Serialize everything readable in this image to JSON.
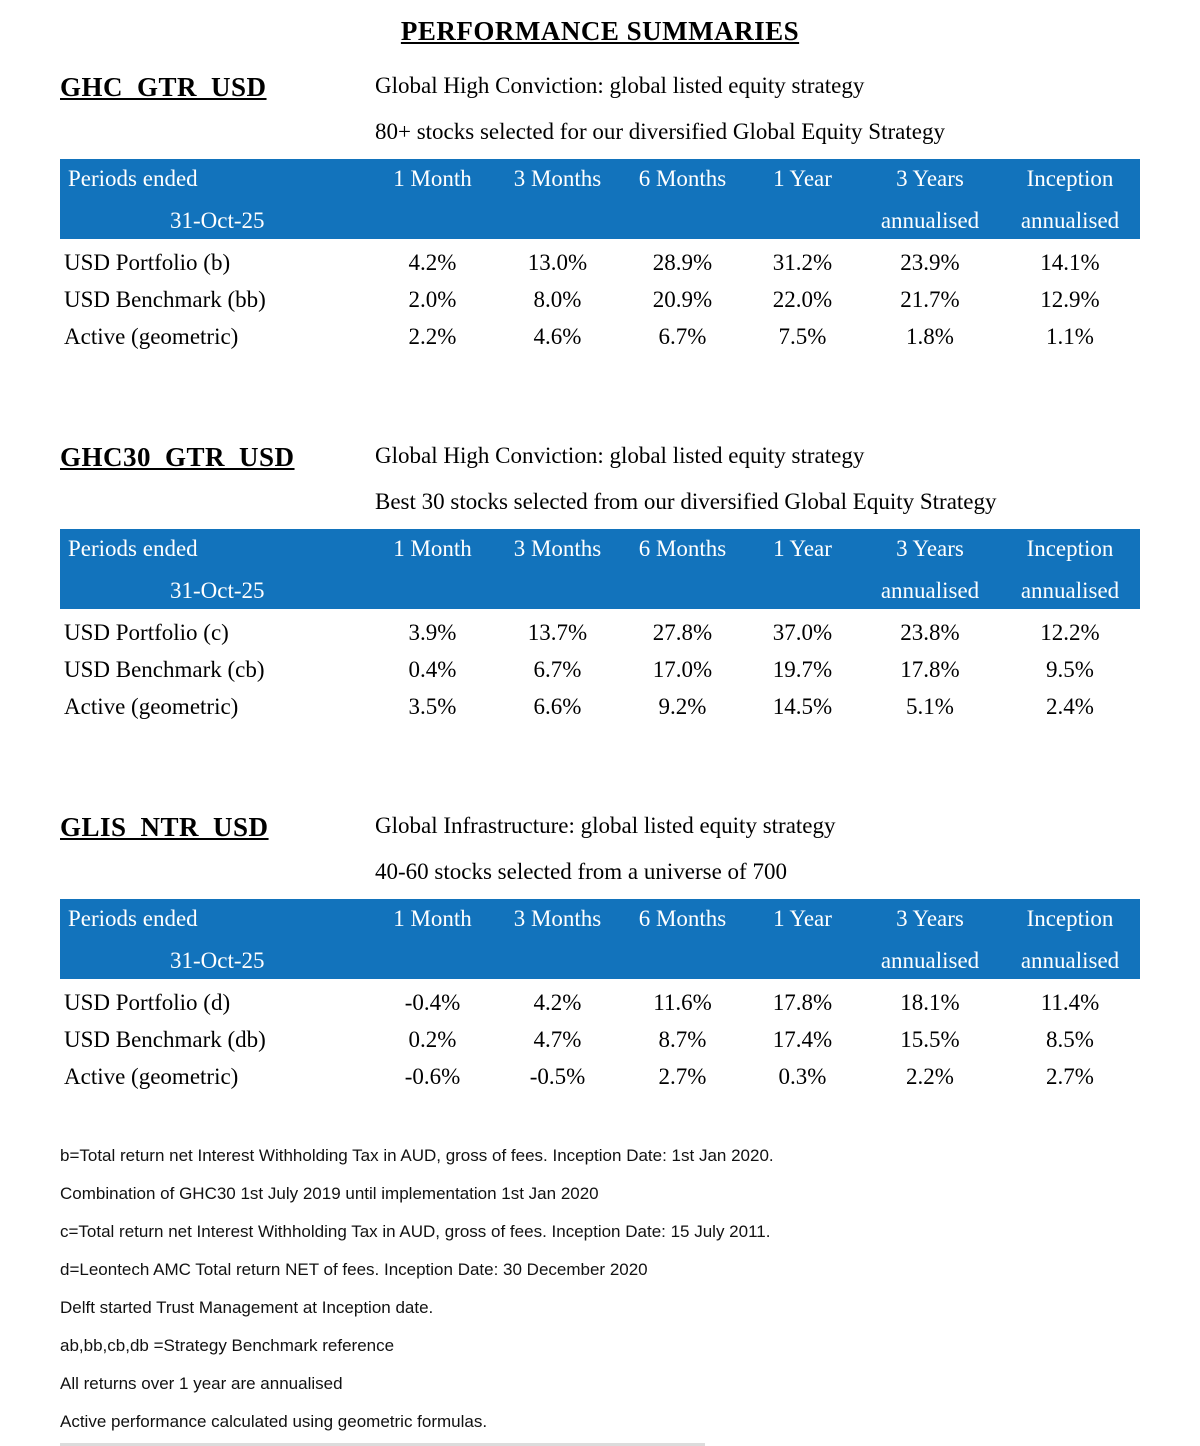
{
  "title": "PERFORMANCE SUMMARIES",
  "colors": {
    "header_bg": "#1273bc",
    "header_text": "#ffffff"
  },
  "table_header": {
    "label_line1": "Periods ended",
    "label_line2": "31-Oct-25"
  },
  "columns": [
    {
      "label": "1 Month",
      "sublabel": ""
    },
    {
      "label": "3 Months",
      "sublabel": ""
    },
    {
      "label": "6 Months",
      "sublabel": ""
    },
    {
      "label": "1 Year",
      "sublabel": ""
    },
    {
      "label": "3 Years",
      "sublabel": "annualised"
    },
    {
      "label": "Inception",
      "sublabel": "annualised"
    }
  ],
  "sections": [
    {
      "code": "GHC_GTR_USD",
      "desc1": "Global High Conviction: global listed equity strategy",
      "desc2": "80+ stocks selected for our diversified Global Equity Strategy",
      "rows": [
        {
          "label": "USD Portfolio (b)",
          "values": [
            "4.2%",
            "13.0%",
            "28.9%",
            "31.2%",
            "23.9%",
            "14.1%"
          ]
        },
        {
          "label": "USD Benchmark (bb)",
          "values": [
            "2.0%",
            "8.0%",
            "20.9%",
            "22.0%",
            "21.7%",
            "12.9%"
          ]
        },
        {
          "label": "Active (geometric)",
          "values": [
            "2.2%",
            "4.6%",
            "6.7%",
            "7.5%",
            "1.8%",
            "1.1%"
          ]
        }
      ]
    },
    {
      "code": "GHC30_GTR_USD",
      "desc1": "Global High Conviction: global listed equity strategy",
      "desc2": "Best 30 stocks selected from our diversified Global Equity Strategy",
      "rows": [
        {
          "label": "USD Portfolio (c)",
          "values": [
            "3.9%",
            "13.7%",
            "27.8%",
            "37.0%",
            "23.8%",
            "12.2%"
          ]
        },
        {
          "label": "USD Benchmark (cb)",
          "values": [
            "0.4%",
            "6.7%",
            "17.0%",
            "19.7%",
            "17.8%",
            "9.5%"
          ]
        },
        {
          "label": "Active (geometric)",
          "values": [
            "3.5%",
            "6.6%",
            "9.2%",
            "14.5%",
            "5.1%",
            "2.4%"
          ]
        }
      ]
    },
    {
      "code": "GLIS_NTR_USD",
      "desc1": "Global Infrastructure: global listed equity strategy",
      "desc2": "40-60 stocks selected from a universe of 700",
      "rows": [
        {
          "label": "USD Portfolio (d)",
          "values": [
            "-0.4%",
            "4.2%",
            "11.6%",
            "17.8%",
            "18.1%",
            "11.4%"
          ]
        },
        {
          "label": "USD Benchmark (db)",
          "values": [
            "0.2%",
            "4.7%",
            "8.7%",
            "17.4%",
            "15.5%",
            "8.5%"
          ]
        },
        {
          "label": "Active (geometric)",
          "values": [
            "-0.6%",
            "-0.5%",
            "2.7%",
            "0.3%",
            "2.2%",
            "2.7%"
          ]
        }
      ]
    }
  ],
  "footnotes": [
    "b=Total return net Interest Withholding Tax in AUD, gross of fees. Inception Date: 1st Jan 2020.",
    "Combination of GHC30 1st July 2019 until implementation 1st Jan 2020",
    "c=Total return net Interest Withholding Tax in AUD, gross of fees. Inception Date: 15 July 2011.",
    "d=Leontech AMC Total return NET of fees. Inception Date: 30 December 2020",
    "Delft started Trust Management at Inception date.",
    "ab,bb,cb,db =Strategy Benchmark reference",
    "All returns over 1 year are annualised",
    "Active performance calculated using geometric formulas."
  ]
}
